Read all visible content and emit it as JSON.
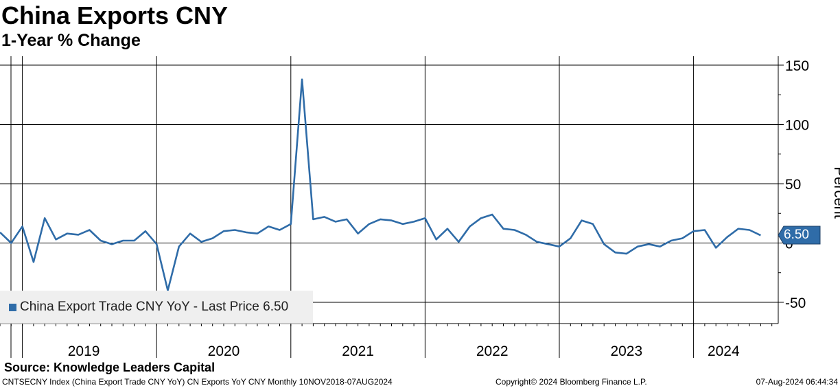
{
  "chart_data": {
    "type": "line",
    "title": "China Exports CNY",
    "subtitle": "1-Year % Change",
    "ylabel": "Percent",
    "xlabel": "",
    "ylim": [
      -68,
      150
    ],
    "yticks": [
      150,
      100,
      50,
      0,
      -50
    ],
    "ytick_labels": [
      "150",
      "100",
      "50",
      "0",
      "-50"
    ],
    "year_labels": [
      "2019",
      "2020",
      "2021",
      "2022",
      "2023",
      "2024"
    ],
    "x_start": "2018-11",
    "series": [
      {
        "name": "China Export Trade CNY YoY",
        "color": "#2f6ca8",
        "values": [
          9,
          0,
          14,
          -16,
          21,
          3,
          8,
          7,
          11,
          2,
          -1,
          2,
          2,
          10,
          -1,
          -40,
          -3,
          8,
          1,
          4,
          10,
          11,
          9,
          8,
          14,
          11,
          16,
          138,
          20,
          22,
          18,
          20,
          8,
          16,
          20,
          19,
          16,
          18,
          21,
          3,
          12,
          1,
          14,
          21,
          24,
          12,
          11,
          7,
          1,
          -1,
          -3,
          4,
          19,
          16,
          -1,
          -8,
          -9,
          -3,
          -1,
          -3,
          2,
          4,
          10,
          11,
          -4,
          5,
          12,
          11,
          6.5
        ]
      }
    ],
    "legend": "China Export Trade CNY YoY - Last Price 6.50",
    "last_value_label": "6.50"
  },
  "source": "Source: Knowledge Leaders Capital",
  "footer": {
    "left": "CNTSECNY Index (China Export Trade CNY YoY) CN Exports YoY CNY  Monthly 10NOV2018-07AUG2024",
    "center": "Copyright© 2024 Bloomberg Finance L.P.",
    "right": "07-Aug-2024 06:44:34"
  }
}
